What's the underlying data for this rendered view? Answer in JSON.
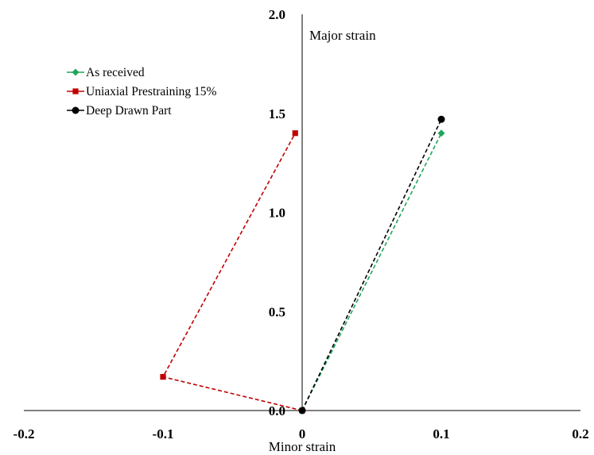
{
  "chart_data": {
    "type": "scatter",
    "xlabel": "Minor strain",
    "ylabel": "Major strain",
    "xlim": [
      -0.2,
      0.2
    ],
    "ylim": [
      0.0,
      2.0
    ],
    "x_ticks": [
      "-0.2",
      "-0.1",
      "0",
      "0.1",
      "0.2"
    ],
    "y_ticks": [
      "0.0",
      "0.5",
      "1.0",
      "1.5",
      "2.0"
    ],
    "grid": false,
    "legend_position": "top-left",
    "series": [
      {
        "name": "As received",
        "color": "#1fa65a",
        "marker": "diamond",
        "line": "dashed",
        "x": [
          0,
          0.1
        ],
        "y": [
          0,
          1.4
        ]
      },
      {
        "name": "Uniaxial Prestraining 15%",
        "color": "#c00000",
        "marker": "square",
        "line": "dashed",
        "x": [
          0,
          -0.1,
          -0.005
        ],
        "y": [
          0,
          0.17,
          1.4
        ]
      },
      {
        "name": "Deep Drawn Part",
        "color": "#000000",
        "marker": "circle",
        "line": "dashed",
        "x": [
          0,
          0.1
        ],
        "y": [
          0,
          1.47
        ]
      }
    ]
  }
}
